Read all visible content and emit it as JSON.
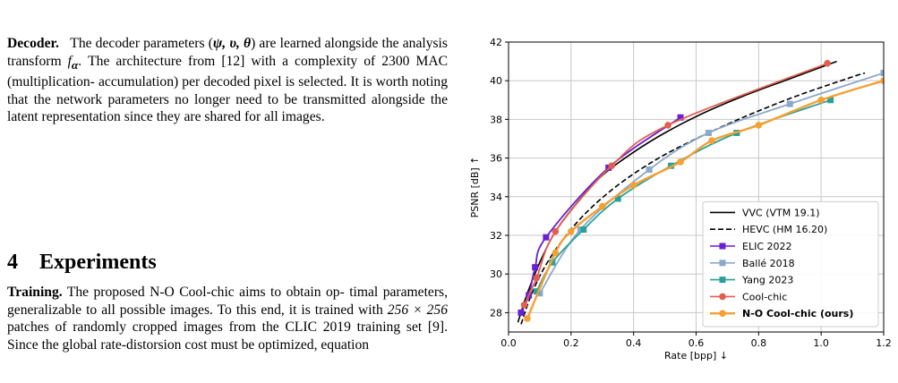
{
  "paper": {
    "decoder_heading": "Decoder.",
    "decoder_lines": [
      "The decoder parameters (",
      ") are learned",
      "alongside the analysis transform ",
      ". The architecture from",
      "[12] with a complexity of 2300 MAC (multiplication-",
      "accumulation) per decoded pixel is selected.  It is worth",
      "noting that the network parameters no longer need to be",
      "transmitted alongside the latent representation since they",
      "are shared for all images."
    ],
    "math_params": "ψ, υ, θ",
    "math_transform": "f",
    "math_transform_sub": "α",
    "section_number": "4",
    "section_title": "Experiments",
    "training_heading": "Training.",
    "training_lines": [
      "The proposed N-O Cool-chic aims to obtain op-",
      "timal parameters, generalizable to all possible images. To",
      "this end, it is trained with ",
      " patches of randomly",
      "cropped images from the CLIC 2019 training set [9]. Since",
      "the global rate-distorsion cost must be optimized, equation"
    ],
    "patch_size": "256 × 256"
  },
  "chart_data": {
    "type": "line",
    "xlabel": "Rate [bpp]",
    "xlabel_arrow": "↓",
    "ylabel": "PSNR [dB]",
    "ylabel_arrow": "↑",
    "xlim": [
      0.0,
      1.2
    ],
    "ylim": [
      27,
      42
    ],
    "x_ticks": [
      "0.0",
      "0.2",
      "0.4",
      "0.6",
      "0.8",
      "1.0",
      "1.2"
    ],
    "x_tick_values": [
      0.0,
      0.2,
      0.4,
      0.6,
      0.8,
      1.0,
      1.2
    ],
    "y_ticks": [
      "28",
      "30",
      "32",
      "34",
      "36",
      "38",
      "40",
      "42"
    ],
    "y_tick_values": [
      28,
      30,
      32,
      34,
      36,
      38,
      40,
      42
    ],
    "grid": true,
    "legend_position": "lower-right",
    "series": [
      {
        "name": "VVC (VTM 19.1)",
        "color": "#000000",
        "dash": "solid",
        "marker": "none",
        "bold": false,
        "x": [
          0.03,
          0.06,
          0.1,
          0.15,
          0.22,
          0.3,
          0.4,
          0.5,
          0.62,
          0.75,
          0.9,
          1.05
        ],
        "y": [
          27.5,
          29.0,
          30.6,
          32.2,
          33.7,
          35.1,
          36.3,
          37.3,
          38.3,
          39.2,
          40.1,
          41.0
        ]
      },
      {
        "name": "HEVC (HM 16.20)",
        "color": "#000000",
        "dash": "dashed",
        "marker": "none",
        "bold": false,
        "x": [
          0.04,
          0.07,
          0.11,
          0.17,
          0.25,
          0.35,
          0.47,
          0.6,
          0.75,
          0.92,
          1.1,
          1.14
        ],
        "y": [
          27.4,
          28.8,
          30.2,
          31.7,
          33.2,
          34.6,
          35.9,
          37.0,
          38.1,
          39.2,
          40.2,
          40.4
        ]
      },
      {
        "name": "ELIC 2022",
        "color": "#6a1fd1",
        "dash": "solid",
        "marker": "square",
        "bold": false,
        "x": [
          0.04,
          0.065,
          0.085,
          0.12,
          0.32,
          0.55
        ],
        "y": [
          28.0,
          28.9,
          30.35,
          31.9,
          35.5,
          38.1
        ]
      },
      {
        "name": "Ballé 2018",
        "color": "#8aa9cb",
        "dash": "solid",
        "marker": "square",
        "bold": false,
        "x": [
          0.1,
          0.23,
          0.45,
          0.64,
          0.9,
          1.2
        ],
        "y": [
          29.0,
          32.3,
          35.4,
          37.3,
          38.8,
          40.4
        ]
      },
      {
        "name": "Yang 2023",
        "color": "#2aa198",
        "dash": "solid",
        "marker": "square",
        "bold": false,
        "x": [
          0.09,
          0.14,
          0.24,
          0.35,
          0.52,
          0.73,
          1.03
        ],
        "y": [
          29.1,
          30.6,
          32.3,
          33.9,
          35.6,
          37.3,
          39.0
        ]
      },
      {
        "name": "Cool-chic",
        "color": "#e06050",
        "dash": "solid",
        "marker": "circle",
        "bold": false,
        "x": [
          0.05,
          0.09,
          0.15,
          0.33,
          0.51,
          1.02
        ],
        "y": [
          28.4,
          29.8,
          32.2,
          35.6,
          37.7,
          40.9
        ]
      },
      {
        "name": "N-O Cool-chic (ours)",
        "color": "#f5a033",
        "dash": "solid",
        "marker": "circle",
        "bold": true,
        "x": [
          0.06,
          0.15,
          0.2,
          0.3,
          0.4,
          0.55,
          0.65,
          0.8,
          1.0,
          1.2
        ],
        "y": [
          27.7,
          31.1,
          32.2,
          33.5,
          34.6,
          35.8,
          36.9,
          37.7,
          39.0,
          40.0
        ]
      }
    ]
  }
}
